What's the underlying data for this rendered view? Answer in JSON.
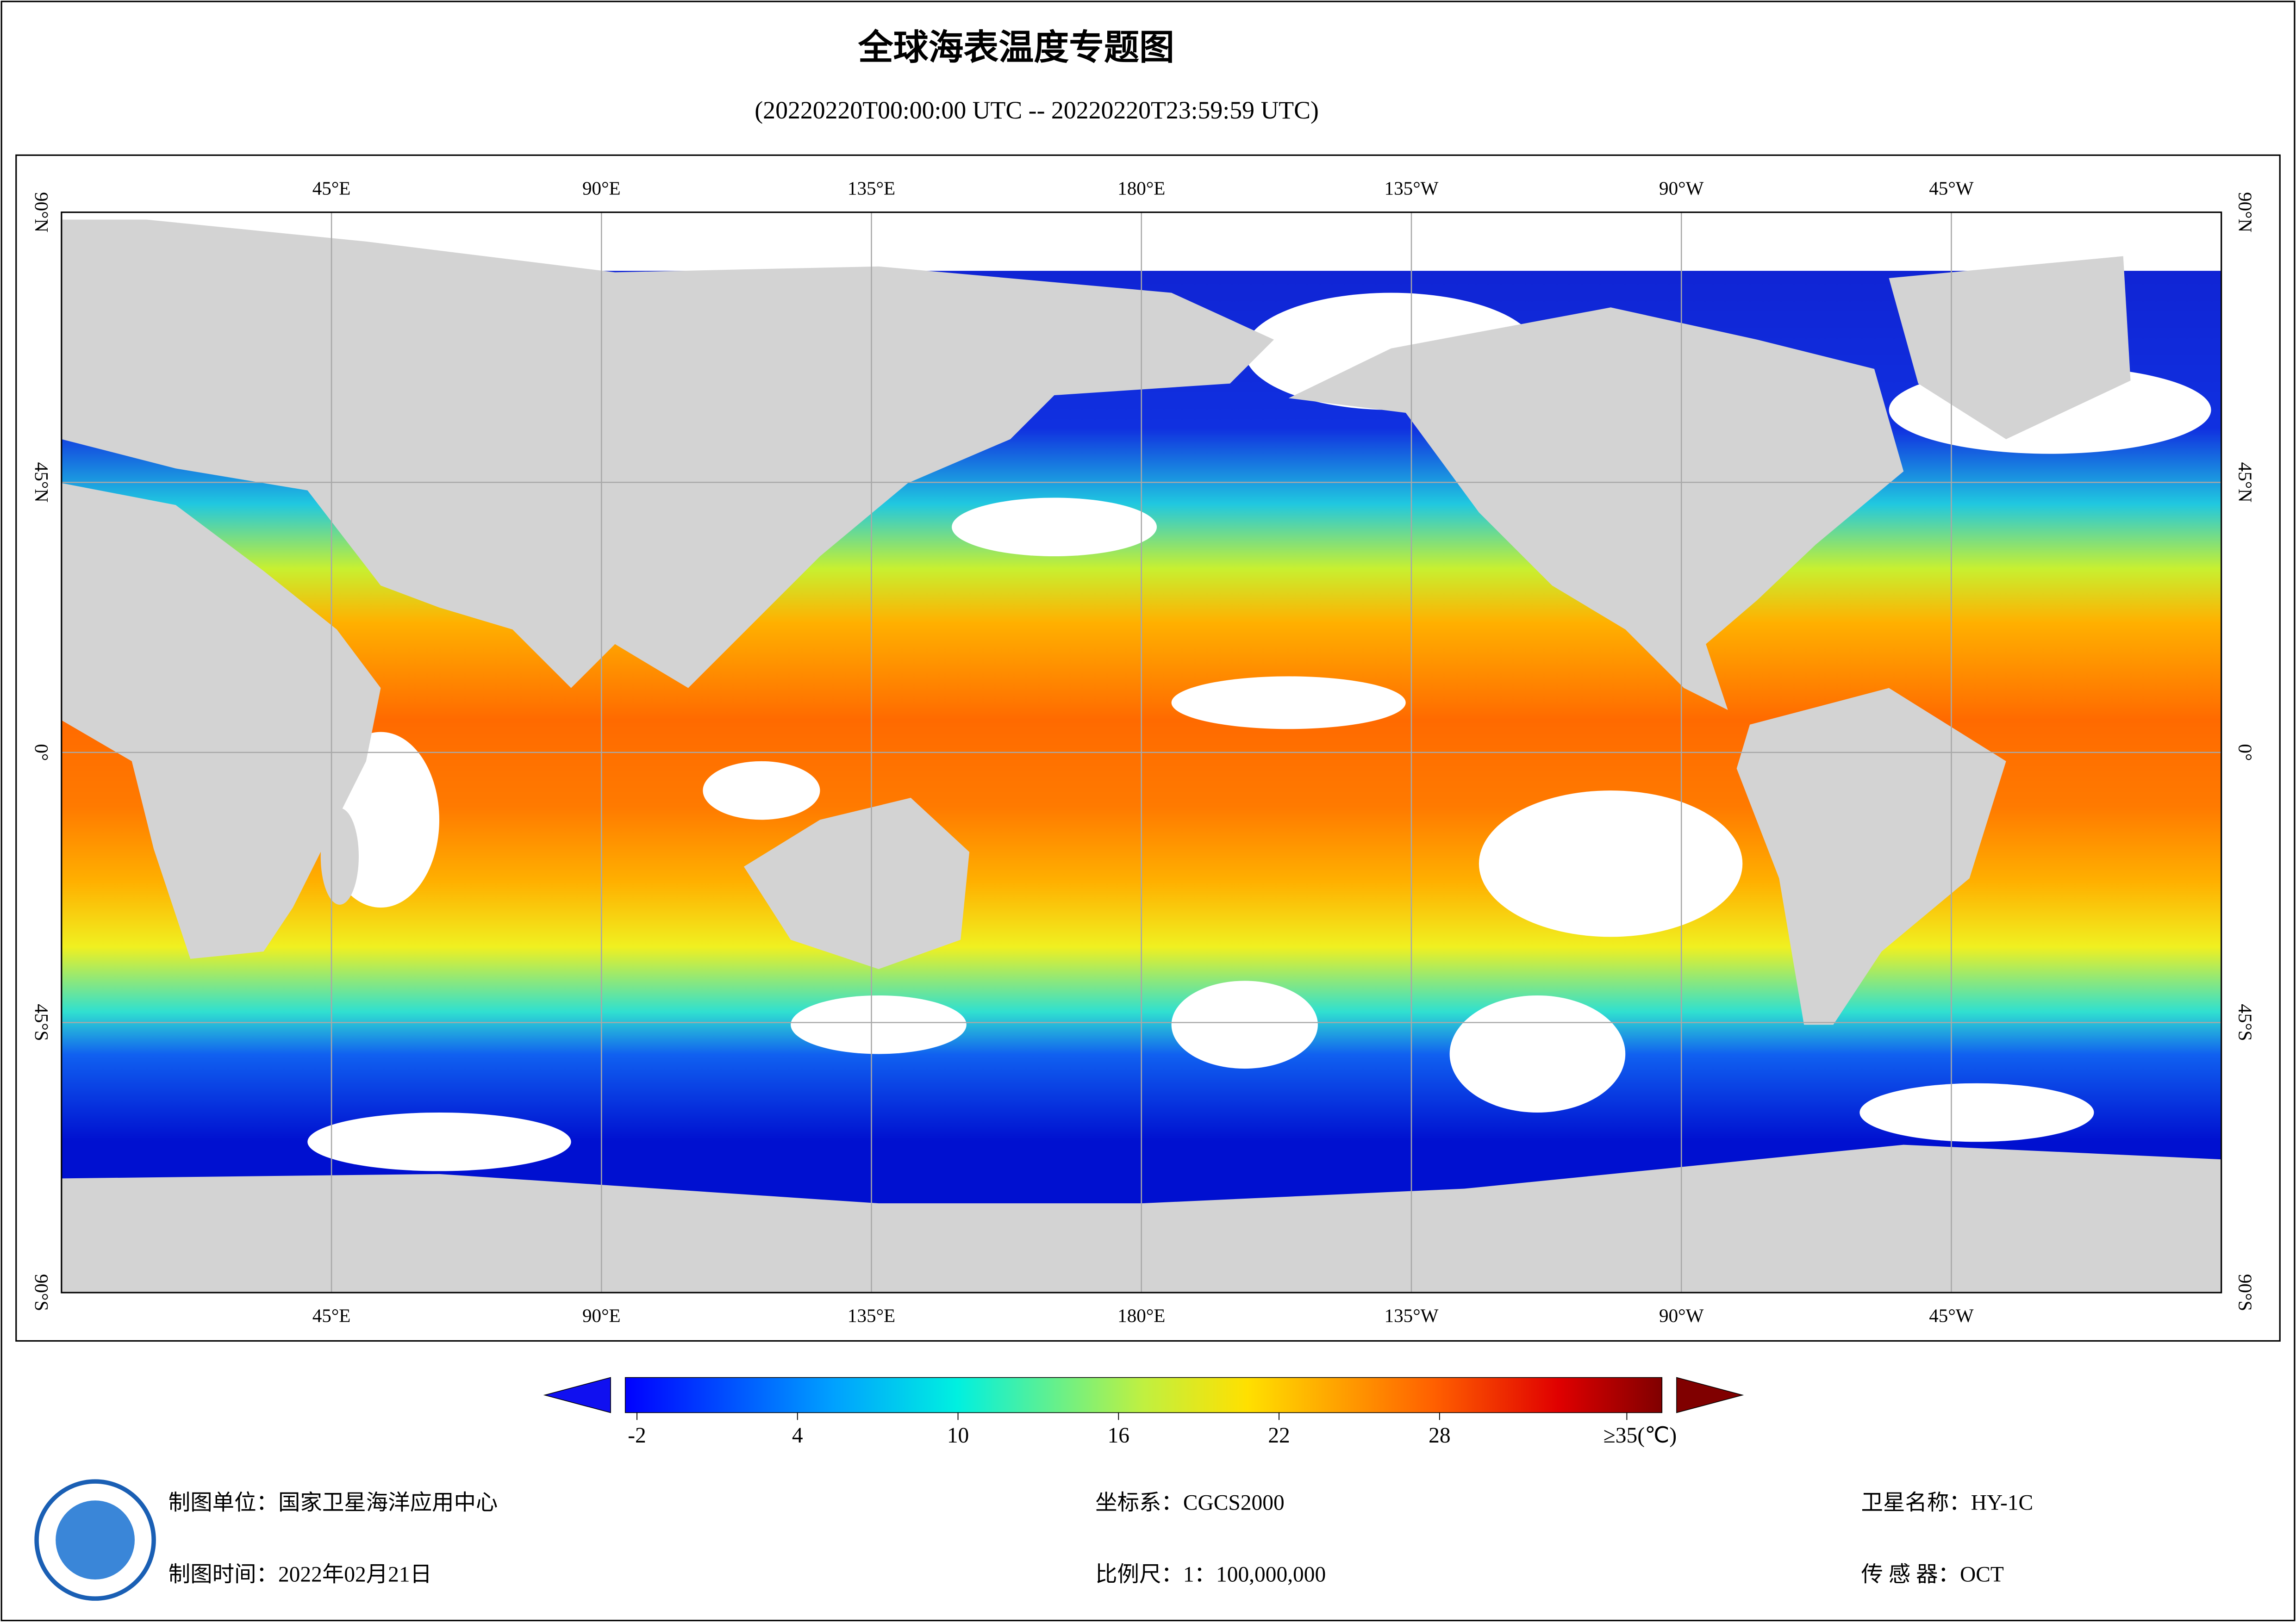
{
  "title": "全球海表温度专题图",
  "subtitle": "(20220220T00:00:00 UTC -- 20220220T23:59:59 UTC)",
  "map": {
    "lonlim": [
      0,
      360
    ],
    "latlim": [
      90,
      -90
    ],
    "lon_ticks": [
      {
        "value": 45,
        "label": "45°E"
      },
      {
        "value": 90,
        "label": "90°E"
      },
      {
        "value": 135,
        "label": "135°E"
      },
      {
        "value": 180,
        "label": "180°E"
      },
      {
        "value": 225,
        "label": "135°W"
      },
      {
        "value": 270,
        "label": "90°W"
      },
      {
        "value": 315,
        "label": "45°W"
      }
    ],
    "lat_ticks": [
      {
        "value": 90,
        "label": "90°N"
      },
      {
        "value": 45,
        "label": "45°N"
      },
      {
        "value": 0,
        "label": "0°"
      },
      {
        "value": -45,
        "label": "45°S"
      },
      {
        "value": -90,
        "label": "90°S"
      }
    ]
  },
  "colorbar": {
    "range": [
      -2,
      35
    ],
    "ticks": [
      -2,
      4,
      10,
      16,
      22,
      28,
      {
        "value": 35,
        "label": "≥35(℃)"
      }
    ]
  },
  "footer": {
    "unit": "制图单位：国家卫星海洋应用中心",
    "date": "制图时间：2022年02月21日",
    "crs": "坐标系：CGCS2000",
    "scale": "比例尺：1：100,000,000",
    "satellite": "卫星名称：HY-1C",
    "sensor": "传 感 器：OCT"
  }
}
